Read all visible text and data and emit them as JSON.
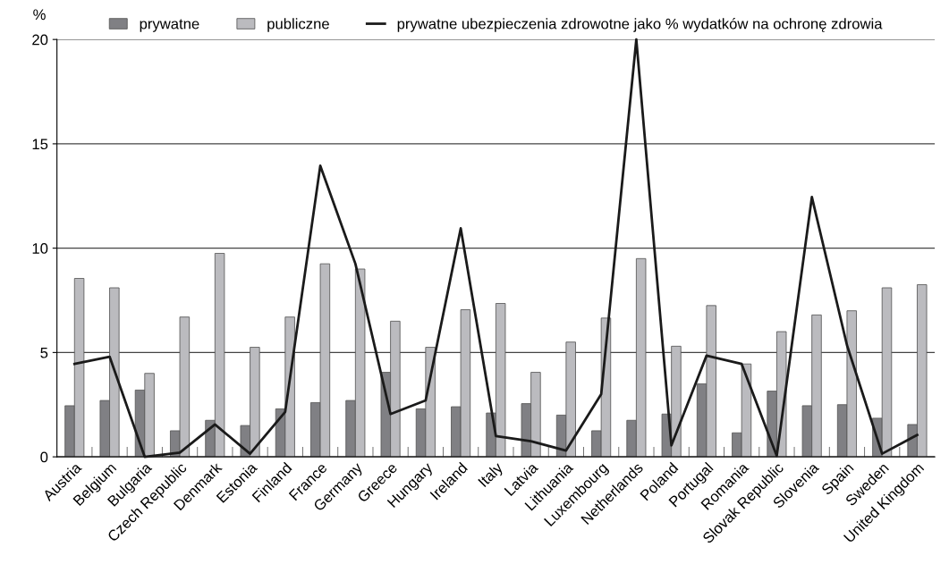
{
  "chart_data": {
    "type": "bar",
    "ylabel": "%",
    "categories": [
      "Austria",
      "Belgium",
      "Bulgaria",
      "Czech Republic",
      "Denmark",
      "Estonia",
      "Finland",
      "France",
      "Germany",
      "Greece",
      "Hungary",
      "Ireland",
      "Italy",
      "Latvia",
      "Lithuania",
      "Luxembourg",
      "Netherlands",
      "Poland",
      "Portugal",
      "Romania",
      "Slovak Republic",
      "Slovenia",
      "Spain",
      "Sweden",
      "United Kingdom"
    ],
    "series": [
      {
        "name": "prywatne",
        "color": "#808084",
        "values": [
          2.45,
          2.7,
          3.2,
          1.25,
          1.75,
          1.5,
          2.3,
          2.6,
          2.7,
          4.05,
          2.3,
          2.4,
          2.1,
          2.55,
          2.0,
          1.25,
          1.75,
          2.05,
          3.5,
          1.15,
          3.15,
          2.45,
          2.5,
          1.85,
          1.55
        ]
      },
      {
        "name": "publiczne",
        "color": "#bbbbbf",
        "values": [
          8.55,
          8.1,
          4.0,
          6.7,
          9.75,
          5.25,
          6.7,
          9.25,
          9.0,
          6.5,
          5.25,
          7.05,
          7.35,
          4.05,
          5.5,
          6.65,
          9.5,
          5.3,
          7.25,
          4.45,
          6.0,
          6.8,
          7.0,
          8.1,
          8.25
        ]
      },
      {
        "name": "prywatne ubezpieczenia zdrowotne jako % wydatków na ochronę zdrowia",
        "type": "line",
        "color": "#1a1a1a",
        "values": [
          4.45,
          4.8,
          0,
          0.2,
          1.55,
          0.15,
          2.15,
          13.95,
          9.25,
          2.05,
          2.7,
          10.95,
          1.0,
          0.75,
          0.3,
          3.0,
          20.0,
          0.55,
          4.85,
          4.45,
          0.05,
          12.45,
          5.35,
          0.15,
          1.05
        ]
      }
    ],
    "ylim": [
      0,
      20
    ],
    "yticks": [
      0,
      5,
      10,
      15,
      20
    ],
    "grid": "y",
    "legend": "top",
    "marker": "none",
    "line_style": "solid"
  }
}
